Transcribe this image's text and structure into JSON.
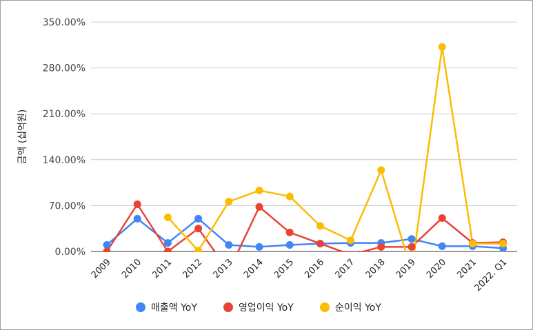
{
  "chart_data": {
    "type": "line",
    "ylabel": "금액 (십억원)",
    "categories": [
      "2009",
      "2010",
      "2011",
      "2012",
      "2013",
      "2014",
      "2015",
      "2016",
      "2017",
      "2018",
      "2019",
      "2020",
      "2021",
      "2022. Q1"
    ],
    "yticks": [
      "0.00%",
      "70.00%",
      "140.00%",
      "210.00%",
      "280.00%",
      "350.00%"
    ],
    "ylim": [
      0,
      350
    ],
    "grid": true,
    "legend_position": "bottom",
    "series": [
      {
        "name": "매출액 YoY",
        "color": "#4285f4",
        "values": [
          10,
          50,
          13,
          50,
          10,
          7,
          10,
          12,
          13,
          13,
          19,
          8,
          8,
          5
        ]
      },
      {
        "name": "영업이익 YoY",
        "color": "#ea4335",
        "values": [
          0,
          72,
          0,
          35,
          -30,
          68,
          29,
          12,
          -5,
          7,
          7,
          51,
          13,
          14
        ]
      },
      {
        "name": "순이익 YoY",
        "color": "#fbbc04",
        "values": [
          null,
          null,
          52,
          1,
          76,
          93,
          84,
          39,
          17,
          124,
          -30,
          312,
          12,
          12
        ]
      }
    ]
  }
}
